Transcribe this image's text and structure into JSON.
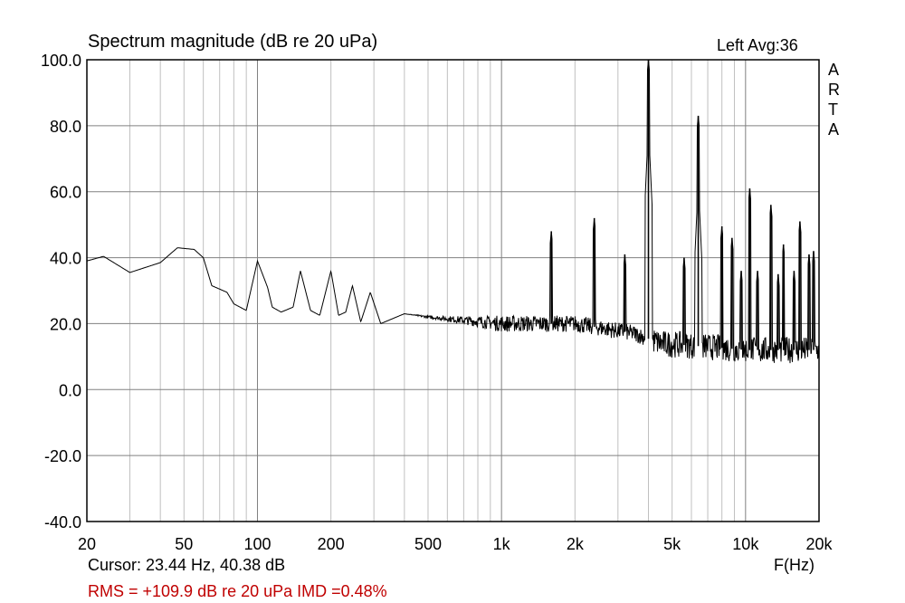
{
  "chart_data": {
    "type": "line",
    "title": "Spectrum magnitude (dB re 20 uPa)",
    "channel_label": "Left  Avg:36",
    "watermark": [
      "A",
      "R",
      "T",
      "A"
    ],
    "xlabel": "F(Hz)",
    "ylabel": "",
    "xscale": "log",
    "xlim": [
      20,
      20000
    ],
    "ylim": [
      -40,
      100
    ],
    "grid": true,
    "x_ticks": [
      20,
      50,
      100,
      200,
      500,
      1000,
      2000,
      5000,
      10000,
      20000
    ],
    "x_tick_labels": [
      "20",
      "50",
      "100",
      "200",
      "500",
      "1k",
      "2k",
      "5k",
      "10k",
      "20k"
    ],
    "y_ticks": [
      100,
      80,
      60,
      40,
      20,
      0,
      -20,
      -40
    ],
    "y_tick_labels": [
      "100.0",
      "80.0",
      "60.0",
      "40.0",
      "20.0",
      "0.0",
      "-20.0",
      "-40.0"
    ],
    "series": [
      {
        "name": "Left",
        "baseline": [
          [
            20,
            39
          ],
          [
            23.4,
            40.4
          ],
          [
            30,
            35.5
          ],
          [
            40,
            38.5
          ],
          [
            47,
            43
          ],
          [
            55,
            42.5
          ],
          [
            60,
            40
          ],
          [
            65,
            31.5
          ],
          [
            75,
            29.5
          ],
          [
            80,
            26
          ],
          [
            90,
            24
          ],
          [
            100,
            39
          ],
          [
            110,
            31
          ],
          [
            115,
            25
          ],
          [
            125,
            23.5
          ],
          [
            140,
            25
          ],
          [
            150,
            36
          ],
          [
            165,
            24
          ],
          [
            180,
            22.5
          ],
          [
            200,
            36
          ],
          [
            215,
            22.5
          ],
          [
            230,
            23.5
          ],
          [
            245,
            31.5
          ],
          [
            265,
            20.5
          ],
          [
            290,
            29.5
          ],
          [
            320,
            20
          ],
          [
            400,
            23
          ],
          [
            500,
            22
          ],
          [
            1000,
            20
          ],
          [
            2000,
            20
          ],
          [
            3500,
            17
          ],
          [
            4500,
            14
          ],
          [
            7000,
            13
          ],
          [
            10000,
            12
          ],
          [
            20000,
            12
          ]
        ],
        "noise_db": 2.5,
        "peaks": [
          [
            1600,
            48
          ],
          [
            2400,
            52
          ],
          [
            3200,
            41
          ],
          [
            4000,
            100
          ],
          [
            5600,
            40
          ],
          [
            6400,
            83
          ],
          [
            8000,
            49.5
          ],
          [
            8800,
            46
          ],
          [
            9600,
            36
          ],
          [
            10400,
            61
          ],
          [
            11200,
            36
          ],
          [
            12700,
            56
          ],
          [
            13600,
            35
          ],
          [
            14300,
            44
          ],
          [
            15800,
            36
          ],
          [
            16700,
            51
          ],
          [
            18200,
            41
          ],
          [
            19000,
            42
          ]
        ]
      }
    ]
  },
  "footer": {
    "cursor": "Cursor: 23.44 Hz, 40.38 dB",
    "rms": "RMS = +109.9 dB re 20 uPa  IMD =0.48%"
  }
}
